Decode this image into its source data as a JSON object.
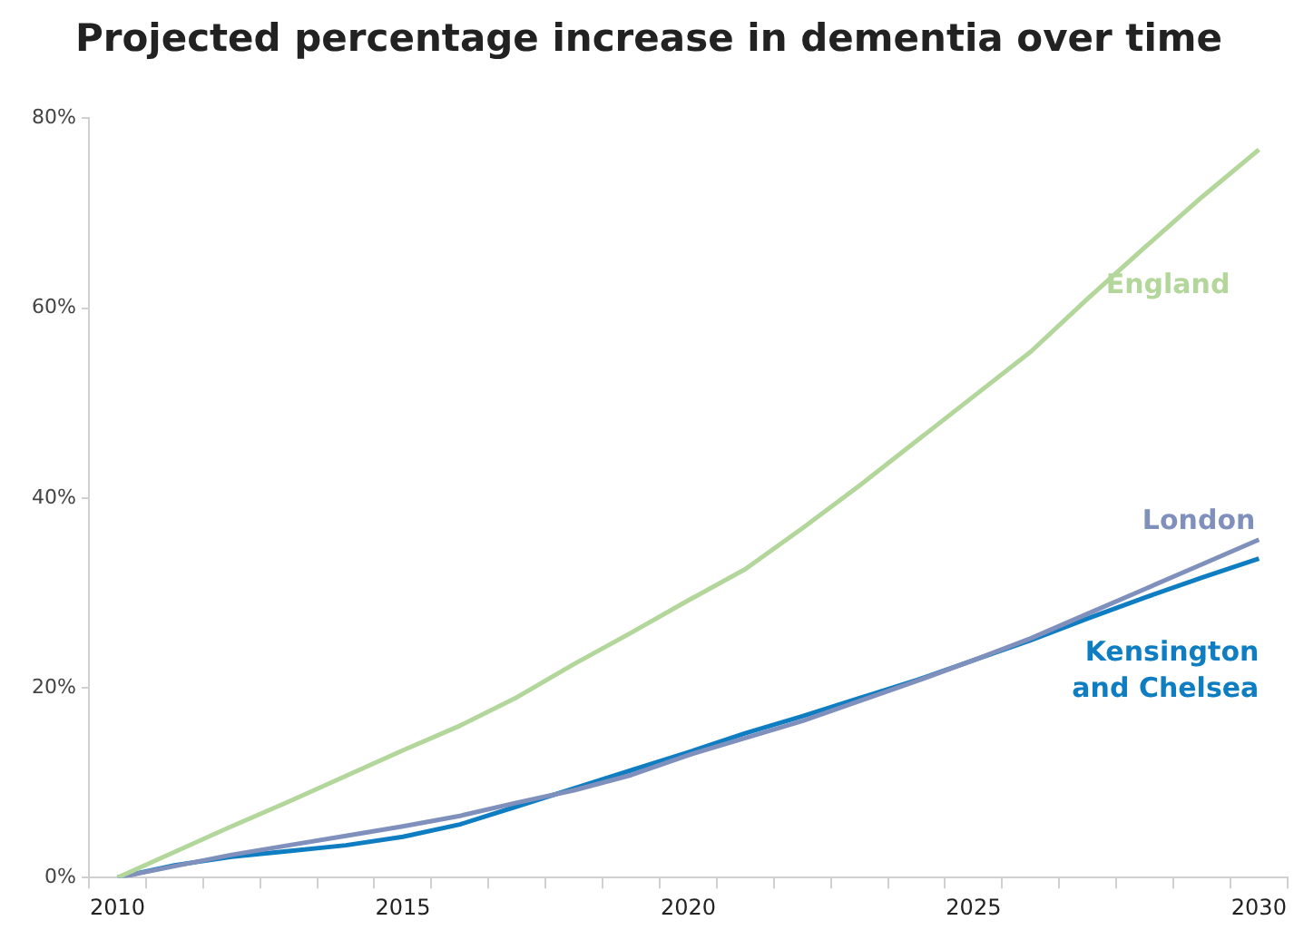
{
  "chart_data": {
    "type": "line",
    "title": "Projected percentage increase in dementia over time",
    "categories": [
      "2010",
      null,
      null,
      null,
      null,
      "2015",
      null,
      null,
      null,
      null,
      "2020",
      null,
      null,
      null,
      null,
      "2025",
      null,
      null,
      null,
      null,
      "2030"
    ],
    "series": [
      {
        "name": "England",
        "color": "#b3d69b",
        "values": [
          0,
          2.7,
          5.4,
          8.0,
          10.7,
          13.4,
          16.0,
          19.0,
          22.5,
          25.8,
          29.2,
          32.5,
          36.8,
          41.3,
          46.0,
          50.7,
          55.4,
          61.0,
          66.4,
          71.7,
          76.7
        ]
      },
      {
        "name": "London",
        "color": "#8090bd",
        "values": [
          0,
          1.2,
          2.4,
          3.4,
          4.4,
          5.4,
          6.5,
          7.9,
          9.2,
          10.8,
          12.9,
          14.7,
          16.5,
          18.6,
          20.7,
          22.9,
          25.2,
          27.8,
          30.4,
          33.0,
          35.6
        ]
      },
      {
        "name": "Kensington and Chelsea",
        "color": "#0f7dc2",
        "values": [
          0,
          1.3,
          2.2,
          2.8,
          3.4,
          4.3,
          5.6,
          7.5,
          9.4,
          11.3,
          13.2,
          15.2,
          17.0,
          18.9,
          20.8,
          22.9,
          25.0,
          27.3,
          29.5,
          31.6,
          33.6
        ]
      }
    ],
    "ylim": [
      0,
      80
    ],
    "yticks": [
      {
        "value": 0,
        "label": "0%"
      },
      {
        "value": 20,
        "label": "20%"
      },
      {
        "value": 40,
        "label": "40%"
      },
      {
        "value": 60,
        "label": "60%"
      },
      {
        "value": 80,
        "label": "80%"
      }
    ],
    "grid": false,
    "legend": false,
    "marker": "none",
    "line_style": "solid"
  }
}
